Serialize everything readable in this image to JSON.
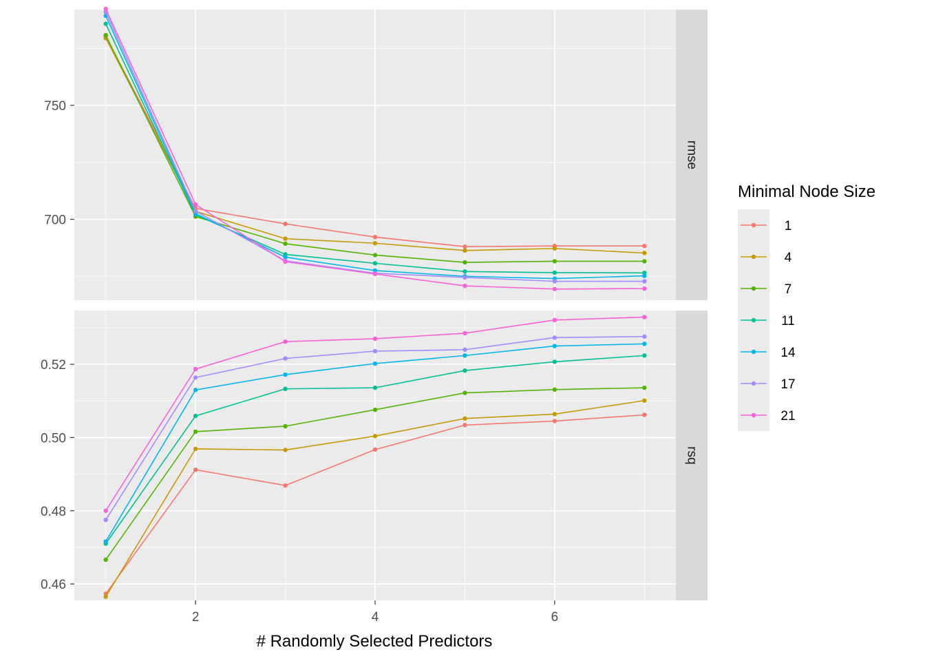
{
  "chart_data": {
    "type": "line",
    "xlabel": "# Randomly Selected Predictors",
    "x": [
      1,
      2,
      3,
      4,
      5,
      6,
      7
    ],
    "x_ticks": [
      2,
      4,
      6
    ],
    "x_tick_labels": [
      "2",
      "4",
      "6"
    ],
    "xlim": [
      0.65,
      7.35
    ],
    "grid": true,
    "legend": {
      "title": "Minimal Node Size",
      "placement": "right",
      "entries": [
        "1",
        "4",
        "7",
        "11",
        "14",
        "17",
        "21"
      ]
    },
    "colors": [
      "#F8766D",
      "#C49A00",
      "#53B400",
      "#00C094",
      "#00B6EB",
      "#A58AFF",
      "#FB61D7"
    ],
    "panels": [
      {
        "label": "rmse",
        "ylim": [
          664.5,
          792
        ],
        "y_ticks": [
          700,
          750
        ],
        "y_tick_labels": [
          "700",
          "750"
        ],
        "series": [
          {
            "name": "1",
            "values": [
              780.3,
              704.8,
              698.0,
              692.2,
              688.0,
              688.3,
              688.3
            ]
          },
          {
            "name": "4",
            "values": [
              779.5,
              703.5,
              691.5,
              689.5,
              686.3,
              687.2,
              685.2
            ]
          },
          {
            "name": "7",
            "values": [
              780.8,
              701.2,
              689.3,
              684.3,
              681.1,
              681.6,
              681.6
            ]
          },
          {
            "name": "11",
            "values": [
              785.8,
              702.0,
              684.6,
              680.7,
              677.1,
              676.6,
              676.5
            ]
          },
          {
            "name": "14",
            "values": [
              789.3,
              702.5,
              683.4,
              677.5,
              675.0,
              674.0,
              675.2
            ]
          },
          {
            "name": "17",
            "values": [
              791.0,
              703.6,
              681.8,
              676.3,
              674.5,
              672.8,
              672.8
            ]
          },
          {
            "name": "21",
            "values": [
              792.3,
              706.5,
              681.4,
              676.0,
              670.8,
              669.4,
              669.6
            ]
          }
        ]
      },
      {
        "label": "rsq",
        "ylim": [
          0.4555,
          0.5347
        ],
        "y_ticks": [
          0.46,
          0.48,
          0.5,
          0.52
        ],
        "y_tick_labels": [
          "0.46",
          "0.48",
          "0.50",
          "0.52"
        ],
        "series": [
          {
            "name": "1",
            "values": [
              0.4573,
              0.4912,
              0.4869,
              0.4967,
              0.5034,
              0.5045,
              0.5062
            ]
          },
          {
            "name": "4",
            "values": [
              0.4565,
              0.4969,
              0.4966,
              0.5004,
              0.5052,
              0.5064,
              0.5101
            ]
          },
          {
            "name": "7",
            "values": [
              0.4666,
              0.5016,
              0.5031,
              0.5076,
              0.5122,
              0.5131,
              0.5136
            ]
          },
          {
            "name": "11",
            "values": [
              0.471,
              0.5059,
              0.5133,
              0.5136,
              0.5183,
              0.5207,
              0.5224
            ]
          },
          {
            "name": "14",
            "values": [
              0.4716,
              0.513,
              0.5172,
              0.5202,
              0.5224,
              0.525,
              0.5256
            ]
          },
          {
            "name": "17",
            "values": [
              0.4775,
              0.5164,
              0.5216,
              0.5236,
              0.524,
              0.5273,
              0.5276
            ]
          },
          {
            "name": "21",
            "values": [
              0.48,
              0.5187,
              0.5262,
              0.527,
              0.5285,
              0.5321,
              0.5329
            ]
          }
        ]
      }
    ]
  }
}
